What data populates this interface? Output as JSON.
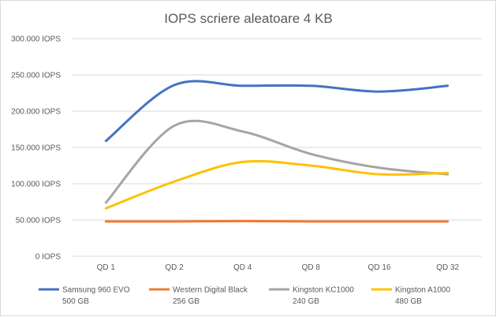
{
  "chart_data": {
    "type": "line",
    "title": "IOPS scriere aleatoare 4 KB",
    "xlabel": "",
    "ylabel": "",
    "categories": [
      "QD 1",
      "QD 2",
      "QD 4",
      "QD 8",
      "QD 16",
      "QD 32"
    ],
    "ylim": [
      0,
      300000
    ],
    "y_ticks": [
      {
        "value": 0,
        "label": "0 IOPS"
      },
      {
        "value": 50000,
        "label": "50.000 IOPS"
      },
      {
        "value": 100000,
        "label": "100.000 IOPS"
      },
      {
        "value": 150000,
        "label": "150.000 IOPS"
      },
      {
        "value": 200000,
        "label": "200.000 IOPS"
      },
      {
        "value": 250000,
        "label": "250.000 IOPS"
      },
      {
        "value": 300000,
        "label": "300.000 IOPS"
      }
    ],
    "grid": true,
    "smooth": true,
    "legend_position": "bottom",
    "series": [
      {
        "name": "Samsung 960 EVO",
        "subname": "500 GB",
        "color": "#4472c4",
        "values": [
          159000,
          236000,
          235000,
          235000,
          227000,
          235000
        ]
      },
      {
        "name": "Western Digital Black",
        "subname": "256 GB",
        "color": "#ed7d31",
        "values": [
          48000,
          48000,
          48500,
          48000,
          48000,
          48000
        ]
      },
      {
        "name": "Kingston KC1000",
        "subname": "240 GB",
        "color": "#a5a5a5",
        "values": [
          74000,
          180000,
          172000,
          141000,
          122000,
          113000
        ]
      },
      {
        "name": "Kingston A1000",
        "subname": "480 GB",
        "color": "#ffc000",
        "values": [
          66000,
          103000,
          130000,
          125000,
          113000,
          115000
        ]
      }
    ]
  }
}
